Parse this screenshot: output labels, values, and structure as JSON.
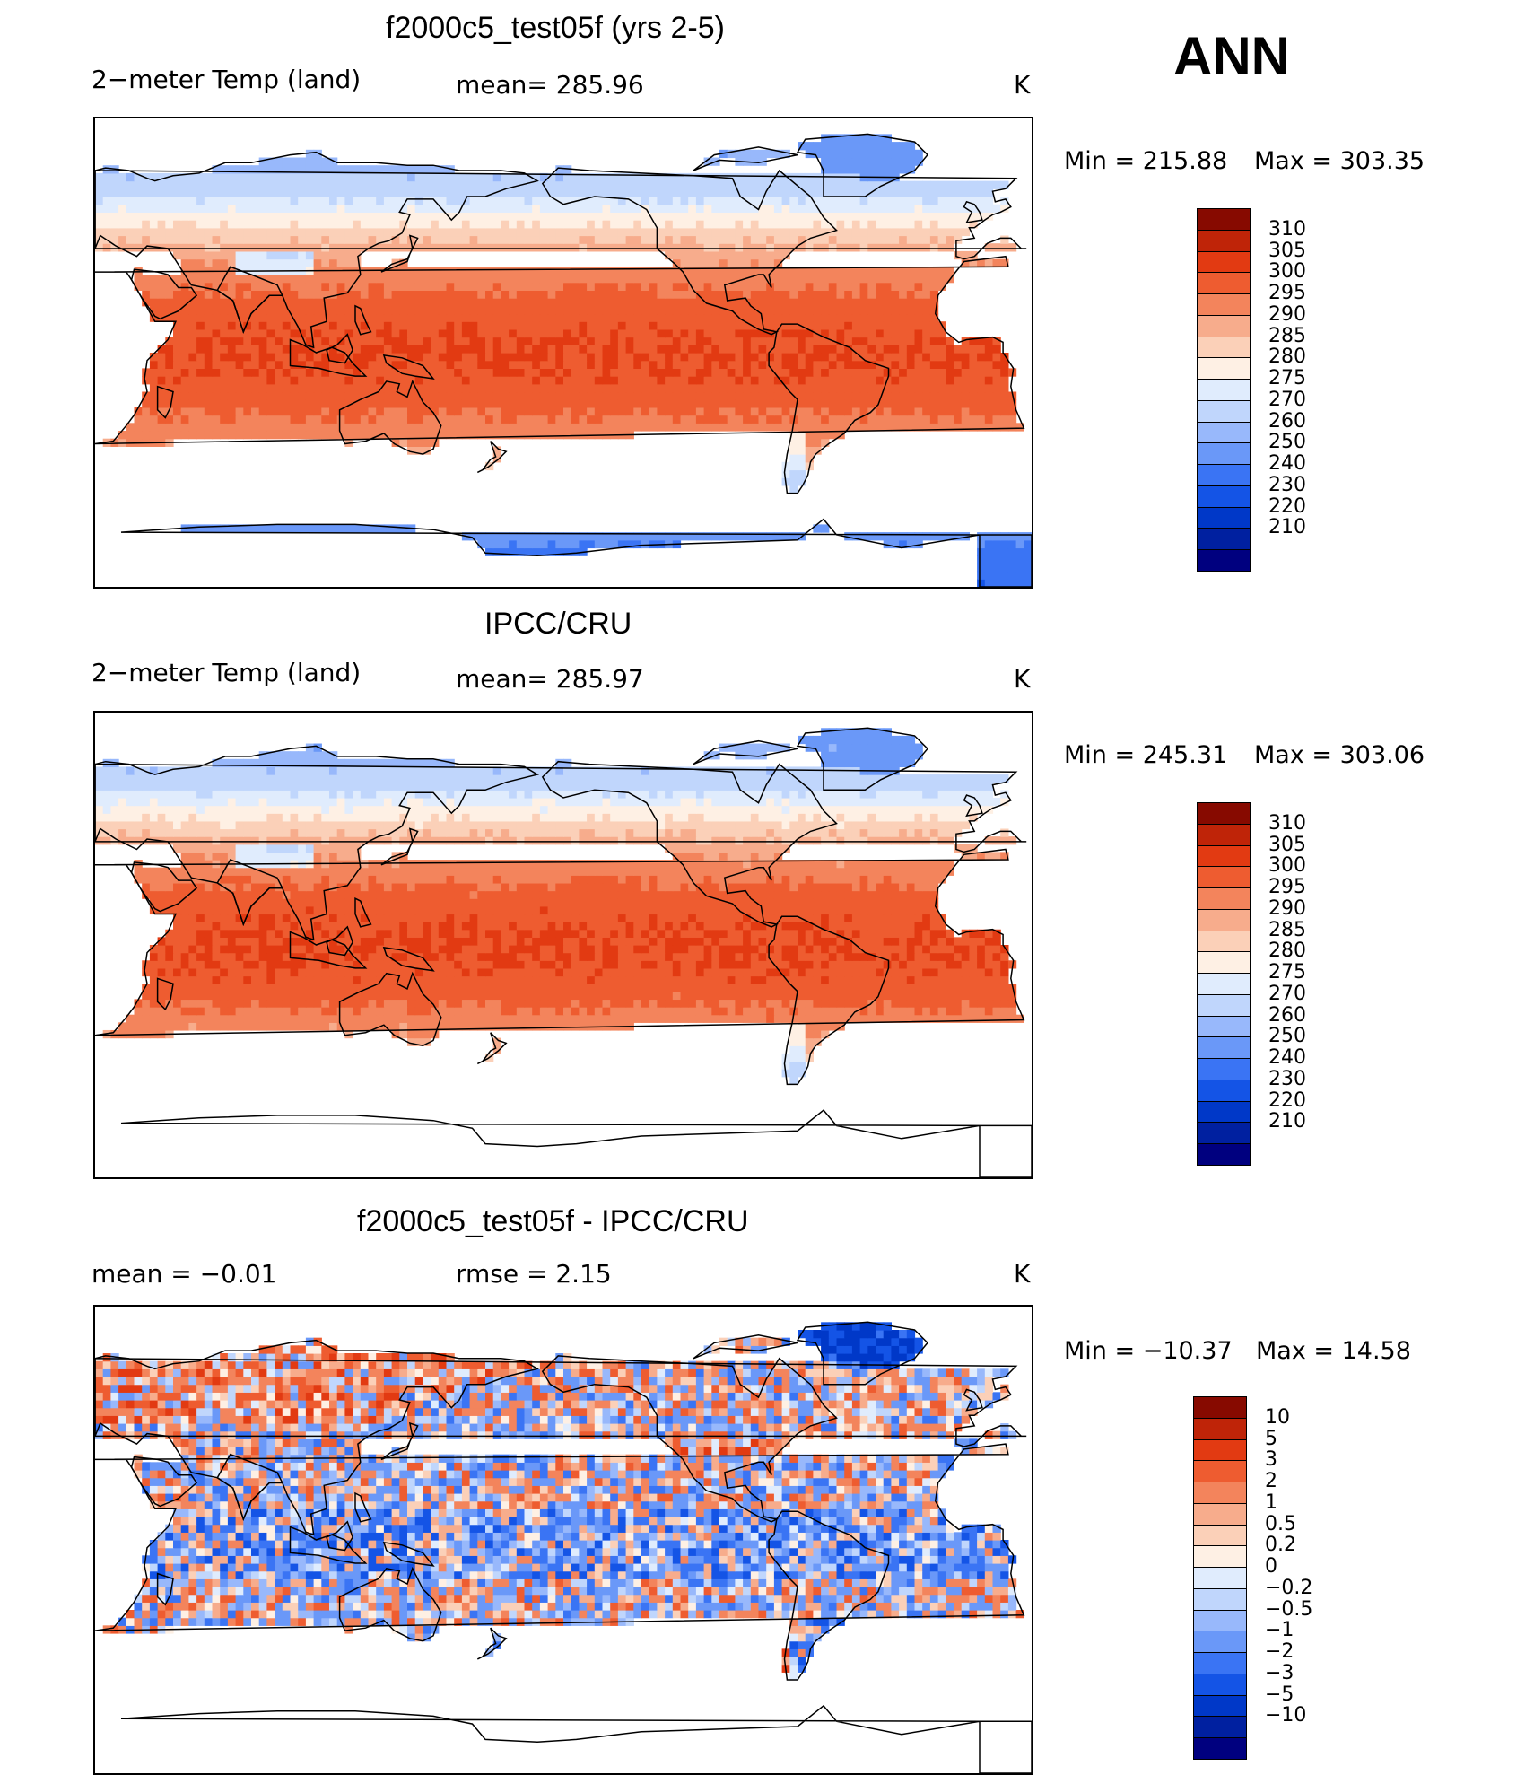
{
  "season": "ANN",
  "units": "K",
  "palette": {
    "abs": [
      "#00007f",
      "#0020a0",
      "#0038c8",
      "#1454e6",
      "#3a74f4",
      "#6a98f8",
      "#98b8fb",
      "#c0d6fc",
      "#e0ecfd",
      "#fef0e4",
      "#fbd0b8",
      "#f7ac8c",
      "#f3845c",
      "#ee5c30",
      "#e23a12",
      "#bf2408",
      "#870a00"
    ],
    "diff": [
      "#00007f",
      "#0020a0",
      "#0038c8",
      "#1454e6",
      "#3a74f4",
      "#6a98f8",
      "#98b8fb",
      "#c0d6fc",
      "#e0ecfd",
      "#fef0e4",
      "#fbd0b8",
      "#f7ac8c",
      "#f3845c",
      "#ee5c30",
      "#e23a12",
      "#bf2408",
      "#870a00"
    ],
    "land_outline": "#000000"
  },
  "panels": [
    {
      "title": "f2000c5_test05f (yrs 2-5)",
      "left_label": "2−meter Temp (land)",
      "center_label": "mean=  285.96",
      "units": "K",
      "min_label": "Min  =  215.88",
      "max_label": "Max  =  303.35",
      "colorbar_levels": [
        "310",
        "305",
        "300",
        "295",
        "290",
        "285",
        "280",
        "275",
        "270",
        "260",
        "250",
        "240",
        "230",
        "220",
        "210"
      ],
      "field": "model"
    },
    {
      "title": "IPCC/CRU",
      "left_label": "2−meter Temp (land)",
      "center_label": "mean=  285.97",
      "units": "K",
      "min_label": "Min  =  245.31",
      "max_label": "Max  =  303.06",
      "colorbar_levels": [
        "310",
        "305",
        "300",
        "295",
        "290",
        "285",
        "280",
        "275",
        "270",
        "260",
        "250",
        "240",
        "230",
        "220",
        "210"
      ],
      "field": "obs"
    },
    {
      "title": "f2000c5_test05f - IPCC/CRU",
      "left_label": "mean  =     −0.01",
      "center_label": "rmse  =      2.15",
      "units": "K",
      "min_label": "Min  =  −10.37",
      "max_label": "Max  =     14.58",
      "colorbar_levels": [
        "10",
        "5",
        "3",
        "2",
        "1",
        "0.5",
        "0.2",
        "0",
        "−0.2",
        "−0.5",
        "−1",
        "−2",
        "−3",
        "−5",
        "−10"
      ],
      "field": "diff"
    }
  ]
}
